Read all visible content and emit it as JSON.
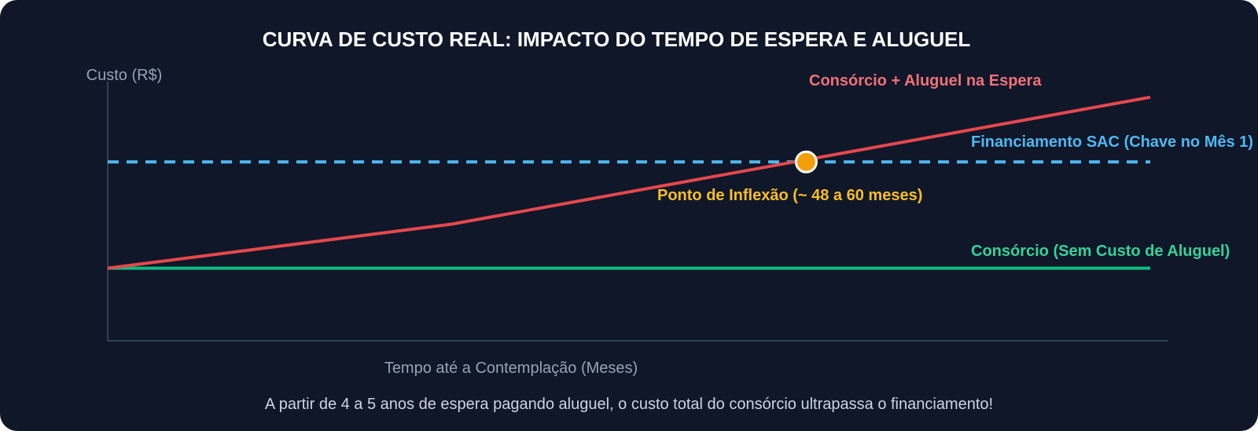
{
  "chart_data": {
    "type": "line",
    "title": "CURVA DE CUSTO REAL: IMPACTO DO TEMPO DE ESPERA E ALUGUEL",
    "ylabel": "Custo (R$)",
    "xlabel": "Tempo até a Contemplação (Meses)",
    "xlim": [
      0,
      100
    ],
    "ylim": [
      0,
      100
    ],
    "grid": false,
    "series": [
      {
        "name": "Consórcio + Aluguel na Espera",
        "color": "#e5484d",
        "dashed": false,
        "x": [
          0,
          33,
          100
        ],
        "y": [
          28,
          45,
          94
        ]
      },
      {
        "name": "Financiamento SAC (Chave no Mês 1)",
        "color": "#4fb8f0",
        "dashed": true,
        "x": [
          0,
          100
        ],
        "y": [
          69,
          69
        ]
      },
      {
        "name": "Consórcio (Sem Custo de Aluguel)",
        "color": "#10b981",
        "dashed": false,
        "x": [
          0,
          100
        ],
        "y": [
          28,
          28
        ]
      }
    ],
    "annotations": [
      {
        "text": "Ponto de Inflexão (~ 48 a 60 meses)",
        "x": 67,
        "y": 69,
        "color": "#fbbf24"
      }
    ],
    "caption": "A partir de 4 a 5 anos de espera pagando aluguel, o custo total do consórcio ultrapassa o financiamento!"
  },
  "colors": {
    "background": "#0f1729",
    "axis": "#334155",
    "inflection_marker": "#f59e0b"
  }
}
